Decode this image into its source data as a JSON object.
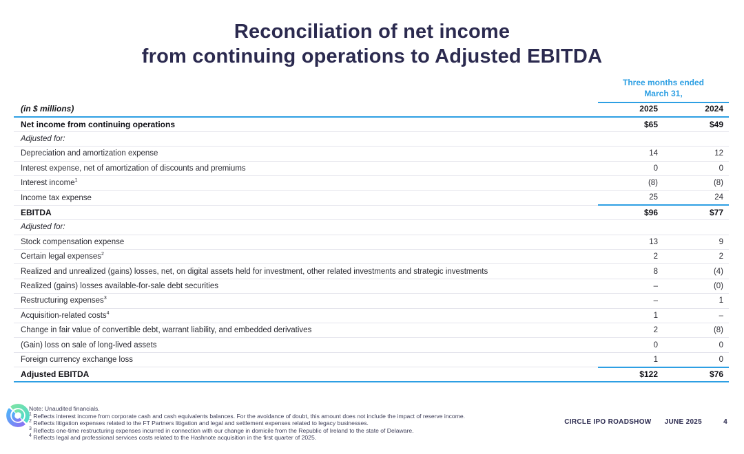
{
  "title": {
    "line1": "Reconciliation of net income",
    "line2": "from continuing operations to Adjusted EBITDA"
  },
  "colors": {
    "accent_blue": "#2d9fe3",
    "title_navy": "#2b2a4f",
    "logo_green": "#7ce3a6",
    "logo_teal": "#4fd9cb",
    "logo_blue": "#4fb3f9",
    "logo_purple": "#8a72f3"
  },
  "table": {
    "period_header_line1": "Three months ended",
    "period_header_line2": "March 31,",
    "units_label": "(in $ millions)",
    "columns": [
      "2025",
      "2024"
    ],
    "rows": [
      {
        "label": "Net income from continuing operations",
        "sup": "",
        "v2025": "$65",
        "v2024": "$49",
        "style": "bold",
        "rule_above_values": false
      },
      {
        "label": "Adjusted for:",
        "sup": "",
        "v2025": "",
        "v2024": "",
        "style": "italic",
        "rule_above_values": false
      },
      {
        "label": "Depreciation and amortization expense",
        "sup": "",
        "v2025": "14",
        "v2024": "12",
        "style": "normal",
        "rule_above_values": false
      },
      {
        "label": "Interest expense, net of amortization of discounts and premiums",
        "sup": "",
        "v2025": "0",
        "v2024": "0",
        "style": "normal",
        "rule_above_values": false
      },
      {
        "label": "Interest income",
        "sup": "1",
        "v2025": "(8)",
        "v2024": "(8)",
        "style": "normal",
        "rule_above_values": false
      },
      {
        "label": "Income tax expense",
        "sup": "",
        "v2025": "25",
        "v2024": "24",
        "style": "normal",
        "rule_above_values": false
      },
      {
        "label": "EBITDA",
        "sup": "",
        "v2025": "$96",
        "v2024": "$77",
        "style": "bold",
        "rule_above_values": true
      },
      {
        "label": "Adjusted for:",
        "sup": "",
        "v2025": "",
        "v2024": "",
        "style": "italic",
        "rule_above_values": false
      },
      {
        "label": "Stock compensation expense",
        "sup": "",
        "v2025": "13",
        "v2024": "9",
        "style": "normal",
        "rule_above_values": false
      },
      {
        "label": "Certain legal expenses",
        "sup": "2",
        "v2025": "2",
        "v2024": "2",
        "style": "normal",
        "rule_above_values": false
      },
      {
        "label": "Realized and unrealized (gains) losses, net, on digital assets held for investment, other related investments and strategic investments",
        "sup": "",
        "v2025": "8",
        "v2024": "(4)",
        "style": "normal",
        "rule_above_values": false
      },
      {
        "label": "Realized (gains) losses available-for-sale debt securities",
        "sup": "",
        "v2025": "–",
        "v2024": "(0)",
        "style": "normal",
        "rule_above_values": false
      },
      {
        "label": "Restructuring expenses",
        "sup": "3",
        "v2025": "–",
        "v2024": "1",
        "style": "normal",
        "rule_above_values": false
      },
      {
        "label": "Acquisition-related costs",
        "sup": "4",
        "v2025": "1",
        "v2024": "–",
        "style": "normal",
        "rule_above_values": false
      },
      {
        "label": "Change in fair value of convertible debt, warrant liability, and embedded derivatives",
        "sup": "",
        "v2025": "2",
        "v2024": "(8)",
        "style": "normal",
        "rule_above_values": false
      },
      {
        "label": "(Gain) loss on sale of long-lived assets",
        "sup": "",
        "v2025": "0",
        "v2024": "0",
        "style": "normal",
        "rule_above_values": false
      },
      {
        "label": "Foreign currency exchange loss",
        "sup": "",
        "v2025": "1",
        "v2024": "0",
        "style": "normal",
        "rule_above_values": false
      },
      {
        "label": "Adjusted EBITDA",
        "sup": "",
        "v2025": "$122",
        "v2024": "$76",
        "style": "bold",
        "rule_above_values": true
      }
    ]
  },
  "footnotes": {
    "note": "Note: Unaudited financials.",
    "items": [
      {
        "sup": "1",
        "text": "Reflects interest income from corporate cash and cash equivalents balances. For the avoidance of doubt, this amount does not include the impact of reserve income."
      },
      {
        "sup": "2",
        "text": "Reflects litigation expenses related to the FT Partners litigation and legal and settlement expenses related to legacy businesses."
      },
      {
        "sup": "3",
        "text": "Reflects one-time restructuring expenses incurred in connection with our change in domicile from the Republic of Ireland to the state of Delaware."
      },
      {
        "sup": "4",
        "text": "Reflects legal and professional services costs related to the Hashnote acquisition in the first quarter of 2025."
      }
    ]
  },
  "footer": {
    "brand": "CIRCLE IPO ROADSHOW",
    "date": "JUNE 2025",
    "page": "4"
  }
}
